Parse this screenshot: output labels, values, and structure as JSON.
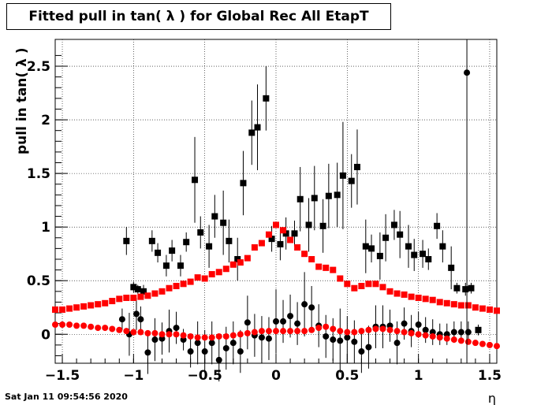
{
  "chart_data": {
    "type": "scatter",
    "title": "Fitted pull in tan( λ ) for Global Rec All EtapT",
    "xlabel": "η",
    "ylabel": "pull in tan( λ )",
    "xlim": [
      -1.55,
      1.55
    ],
    "ylim": [
      -0.27,
      2.75
    ],
    "x_ticks": [
      -1.5,
      -1,
      -0.5,
      0,
      0.5,
      1,
      1.5
    ],
    "x_tick_labels": [
      "−1.5",
      "−1",
      "−0.5",
      "0",
      "0.5",
      "1",
      "1.5"
    ],
    "y_ticks": [
      0,
      0.5,
      1,
      1.5,
      2,
      2.5
    ],
    "y_tick_labels": [
      "0",
      "0.5",
      "1",
      "1.5",
      "2",
      "2.5"
    ],
    "grid": true,
    "series": [
      {
        "marker": "square",
        "color": "#000000",
        "x": [
          -1.25,
          -1.0,
          -1.05,
          -0.97,
          -0.93,
          -0.87,
          -0.83,
          -0.77,
          -0.73,
          -0.67,
          -0.63,
          -0.57,
          -0.53,
          -0.47,
          -0.43,
          -0.37,
          -0.33,
          -0.27,
          -0.23,
          -0.17,
          -0.13,
          -0.07,
          -0.03,
          0.03,
          0.07,
          0.13,
          0.17,
          0.23,
          0.27,
          0.33,
          0.37,
          0.43,
          0.47,
          0.53,
          0.57,
          0.63,
          0.67,
          0.73,
          0.77,
          0.83,
          0.87,
          0.93,
          0.97,
          1.03,
          1.07,
          1.13,
          1.17,
          1.23,
          1.27,
          1.33,
          1.37,
          1.42
        ],
        "y": [
          null,
          0.44,
          0.87,
          0.42,
          0.4,
          0.87,
          0.76,
          0.64,
          0.78,
          0.64,
          0.86,
          1.44,
          0.95,
          0.82,
          1.1,
          1.04,
          0.87,
          0.7,
          1.41,
          1.88,
          1.93,
          2.2,
          0.89,
          0.84,
          0.94,
          0.94,
          1.26,
          1.02,
          1.27,
          1.01,
          1.29,
          1.3,
          1.48,
          1.43,
          1.56,
          0.82,
          0.8,
          0.73,
          0.9,
          1.02,
          0.93,
          0.82,
          0.74,
          0.75,
          0.7,
          1.01,
          0.82,
          0.62,
          0.43,
          0.42,
          0.43,
          0.04
        ],
        "err": [
          0,
          0.05,
          0.13,
          0.04,
          0.06,
          0.1,
          0.09,
          0.1,
          0.1,
          0.1,
          0.09,
          0.4,
          0.15,
          0.2,
          0.2,
          0.3,
          0.2,
          0.2,
          0.3,
          0.3,
          0.4,
          0.3,
          0.12,
          0.15,
          0.15,
          0.12,
          0.3,
          0.25,
          0.3,
          0.25,
          0.3,
          0.3,
          0.5,
          0.25,
          0.35,
          0.25,
          0.13,
          0.22,
          0.22,
          0.14,
          0.22,
          0.2,
          0.15,
          0.13,
          0.1,
          0.12,
          0.15,
          0.2,
          0.05,
          0.06,
          0.05,
          0.05
        ]
      },
      {
        "marker": "circle",
        "color": "#000000",
        "x": [
          -1.08,
          -1.03,
          -0.98,
          -0.95,
          -0.9,
          -0.85,
          -0.8,
          -0.75,
          -0.7,
          -0.65,
          -0.6,
          -0.55,
          -0.5,
          -0.45,
          -0.4,
          -0.35,
          -0.3,
          -0.25,
          -0.2,
          -0.15,
          -0.1,
          -0.05,
          0.0,
          0.05,
          0.1,
          0.15,
          0.2,
          0.25,
          0.3,
          0.35,
          0.4,
          0.45,
          0.5,
          0.55,
          0.6,
          0.65,
          0.7,
          0.75,
          0.8,
          0.85,
          0.9,
          0.95,
          1.0,
          1.05,
          1.1,
          1.15,
          1.2,
          1.25,
          1.3,
          1.35
        ],
        "y": [
          0.14,
          0.0,
          0.19,
          0.14,
          -0.17,
          -0.05,
          -0.04,
          0.03,
          0.06,
          -0.05,
          -0.16,
          -0.08,
          -0.16,
          -0.08,
          -0.24,
          -0.13,
          -0.08,
          -0.16,
          0.11,
          -0.01,
          -0.03,
          -0.04,
          0.12,
          0.12,
          0.17,
          0.1,
          0.28,
          0.25,
          0.08,
          -0.02,
          -0.05,
          -0.06,
          -0.03,
          -0.07,
          -0.16,
          -0.12,
          0.07,
          0.07,
          0.08,
          -0.08,
          0.1,
          0.03,
          0.09,
          0.04,
          0.02,
          0.0,
          0.0,
          0.02,
          0.02,
          0.02
        ],
        "err": [
          0.1,
          0.2,
          0.15,
          0.12,
          0.2,
          0.2,
          0.15,
          0.2,
          0.15,
          0.1,
          0.15,
          0.2,
          0.2,
          0.2,
          0.2,
          0.2,
          0.2,
          0.2,
          0.25,
          0.2,
          0.2,
          0.2,
          0.3,
          0.2,
          0.2,
          0.2,
          0.3,
          0.2,
          0.2,
          0.2,
          0.2,
          0.3,
          0.2,
          0.2,
          0.2,
          0.2,
          0.2,
          0.2,
          0.15,
          0.2,
          0.15,
          0.15,
          0.12,
          0.12,
          0.12,
          0.1,
          0.1,
          0.1,
          0.1,
          0.1
        ]
      },
      {
        "marker": "square",
        "color": "#ff0000",
        "x": [
          -1.55,
          -1.5,
          -1.45,
          -1.4,
          -1.35,
          -1.3,
          -1.25,
          -1.2,
          -1.15,
          -1.1,
          -1.05,
          -1.0,
          -0.95,
          -0.9,
          -0.85,
          -0.8,
          -0.75,
          -0.7,
          -0.65,
          -0.6,
          -0.55,
          -0.5,
          -0.45,
          -0.4,
          -0.35,
          -0.3,
          -0.25,
          -0.2,
          -0.15,
          -0.1,
          -0.05,
          0.0,
          0.05,
          0.1,
          0.15,
          0.2,
          0.25,
          0.3,
          0.35,
          0.4,
          0.45,
          0.5,
          0.55,
          0.6,
          0.65,
          0.7,
          0.75,
          0.8,
          0.85,
          0.9,
          0.95,
          1.0,
          1.05,
          1.1,
          1.15,
          1.2,
          1.25,
          1.3,
          1.35,
          1.4,
          1.45,
          1.5,
          1.55
        ],
        "y": [
          0.23,
          0.23,
          0.24,
          0.25,
          0.26,
          0.27,
          0.28,
          0.29,
          0.31,
          0.33,
          0.34,
          0.34,
          0.35,
          0.36,
          0.38,
          0.4,
          0.43,
          0.45,
          0.47,
          0.49,
          0.53,
          0.52,
          0.56,
          0.58,
          0.61,
          0.65,
          0.67,
          0.71,
          0.81,
          0.85,
          0.93,
          1.02,
          0.97,
          0.88,
          0.81,
          0.75,
          0.7,
          0.63,
          0.62,
          0.6,
          0.52,
          0.47,
          0.43,
          0.45,
          0.47,
          0.47,
          0.44,
          0.4,
          0.38,
          0.37,
          0.35,
          0.34,
          0.33,
          0.32,
          0.3,
          0.29,
          0.28,
          0.27,
          0.27,
          0.25,
          0.24,
          0.23,
          0.22
        ]
      },
      {
        "marker": "circle",
        "color": "#ff0000",
        "x": [
          -1.55,
          -1.5,
          -1.45,
          -1.4,
          -1.35,
          -1.3,
          -1.25,
          -1.2,
          -1.15,
          -1.1,
          -1.05,
          -1.0,
          -0.95,
          -0.9,
          -0.85,
          -0.8,
          -0.75,
          -0.7,
          -0.65,
          -0.6,
          -0.55,
          -0.5,
          -0.45,
          -0.4,
          -0.35,
          -0.3,
          -0.25,
          -0.2,
          -0.15,
          -0.1,
          -0.05,
          0.0,
          0.05,
          0.1,
          0.15,
          0.2,
          0.25,
          0.3,
          0.35,
          0.4,
          0.45,
          0.5,
          0.55,
          0.6,
          0.65,
          0.7,
          0.75,
          0.8,
          0.85,
          0.9,
          0.95,
          1.0,
          1.05,
          1.1,
          1.15,
          1.2,
          1.25,
          1.3,
          1.35,
          1.4,
          1.45,
          1.5,
          1.55
        ],
        "y": [
          0.09,
          0.09,
          0.09,
          0.08,
          0.08,
          0.07,
          0.06,
          0.06,
          0.05,
          0.04,
          0.03,
          0.02,
          0.02,
          0.01,
          0.01,
          0.0,
          0.0,
          0.0,
          -0.01,
          -0.02,
          -0.03,
          -0.03,
          -0.03,
          -0.02,
          -0.02,
          -0.01,
          0.0,
          0.01,
          0.02,
          0.03,
          0.03,
          0.03,
          0.03,
          0.03,
          0.03,
          0.03,
          0.04,
          0.06,
          0.07,
          0.05,
          0.03,
          0.02,
          0.02,
          0.03,
          0.04,
          0.05,
          0.05,
          0.04,
          0.03,
          0.02,
          0.01,
          0.0,
          -0.01,
          -0.02,
          -0.03,
          -0.04,
          -0.05,
          -0.06,
          -0.07,
          -0.08,
          -0.09,
          -0.1,
          -0.11
        ]
      }
    ],
    "outlier": {
      "x": 1.34,
      "y": 2.44
    }
  },
  "timestamp": "Sat Jan 11 09:54:56 2020"
}
